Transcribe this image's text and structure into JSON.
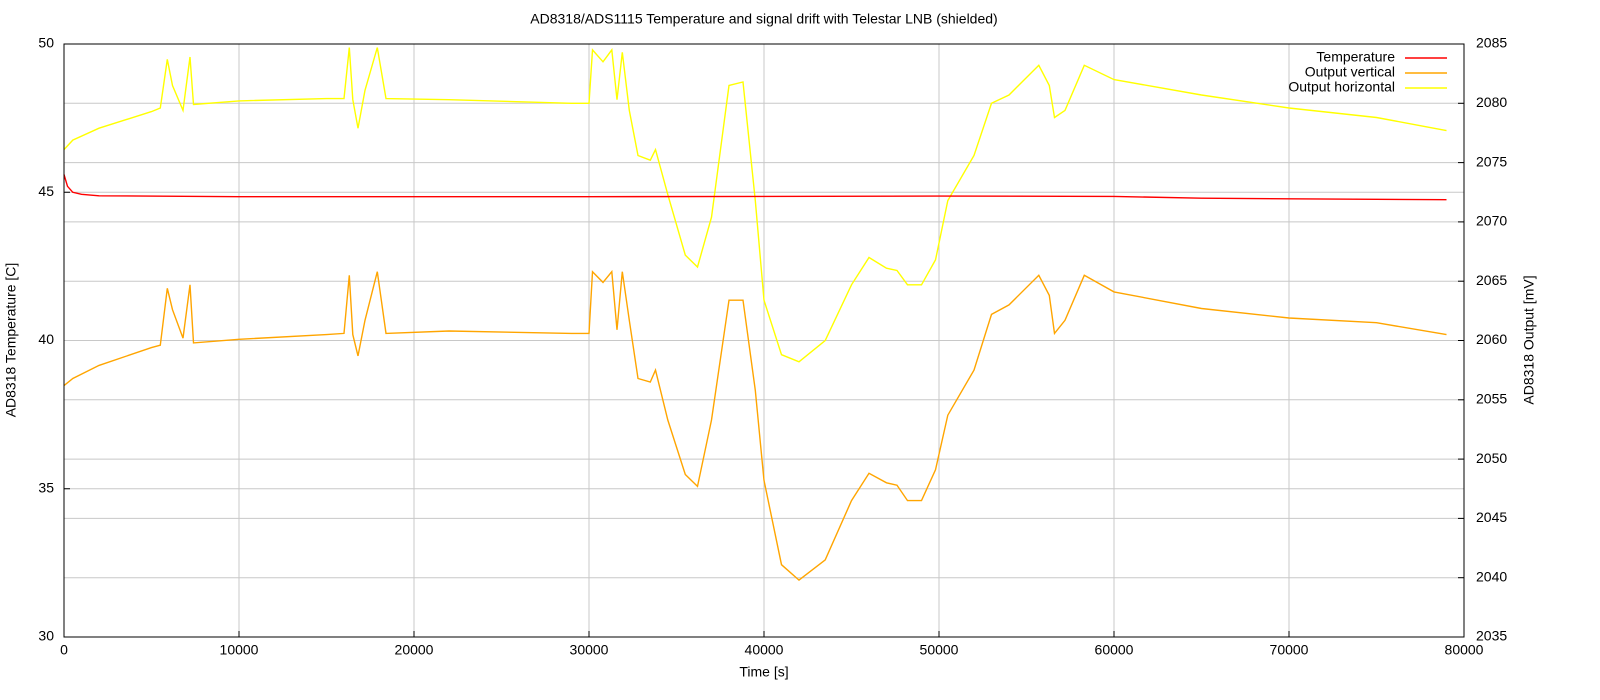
{
  "chart_data": {
    "type": "line",
    "title": "AD8318/ADS1115 Temperature and signal drift with Telestar LNB (shielded)",
    "x_label": "Time [s]",
    "y_label": "AD8318 Temperature [C]",
    "y2_label": "AD8318 Output [mV]",
    "xlim": [
      0,
      80000
    ],
    "xticks": [
      0,
      10000,
      20000,
      30000,
      40000,
      50000,
      60000,
      70000,
      80000
    ],
    "ylim": [
      30,
      50
    ],
    "yticks": [
      30,
      35,
      40,
      45,
      50
    ],
    "y2lim": [
      2035,
      2085
    ],
    "y2ticks": [
      2035,
      2040,
      2045,
      2050,
      2055,
      2060,
      2065,
      2070,
      2075,
      2080,
      2085
    ],
    "grid": true,
    "legend": "top-right",
    "series": [
      {
        "name": "Temperature",
        "color": "#ff0000",
        "x": [
          0,
          200,
          500,
          1000,
          2000,
          10000,
          30000,
          50000,
          60000,
          65000,
          70000,
          79000
        ],
        "values": [
          45.6,
          45.2,
          45.0,
          44.93,
          44.88,
          44.85,
          44.85,
          44.87,
          44.86,
          44.8,
          44.78,
          44.75
        ]
      },
      {
        "name": "Output vertical",
        "color": "#ffa500",
        "axis": "y2",
        "x": [
          0,
          500,
          2000,
          5000,
          5500,
          5900,
          6200,
          6800,
          7200,
          7400,
          10000,
          15000,
          16000,
          16300,
          16500,
          16800,
          17200,
          17900,
          18400,
          22000,
          29000,
          30000,
          30200,
          30800,
          31300,
          31600,
          31900,
          32300,
          32800,
          33500,
          33800,
          34500,
          35500,
          36200,
          37000,
          38000,
          38800,
          39500,
          40000,
          41000,
          42000,
          43500,
          45000,
          46000,
          47000,
          47600,
          48200,
          49000,
          49800,
          50500,
          52000,
          53000,
          54000,
          55700,
          56300,
          56600,
          57200,
          58300,
          60000,
          65000,
          70000,
          75000,
          79000
        ],
        "values": [
          2056.2,
          2056.8,
          2057.9,
          2059.4,
          2059.6,
          2064.4,
          2062.6,
          2060.2,
          2064.7,
          2059.8,
          2060.1,
          2060.5,
          2060.6,
          2065.5,
          2060.5,
          2058.7,
          2061.7,
          2065.8,
          2060.6,
          2060.8,
          2060.6,
          2060.6,
          2065.8,
          2064.9,
          2065.8,
          2060.9,
          2065.8,
          2061.7,
          2056.8,
          2056.5,
          2057.5,
          2053.3,
          2048.7,
          2047.7,
          2053.3,
          2063.4,
          2063.4,
          2055.8,
          2048.2,
          2041.1,
          2039.8,
          2041.5,
          2046.5,
          2048.8,
          2048.0,
          2047.8,
          2046.5,
          2046.5,
          2049.1,
          2053.7,
          2057.5,
          2062.2,
          2063.0,
          2065.5,
          2063.8,
          2060.6,
          2061.7,
          2065.5,
          2064.1,
          2062.7,
          2061.9,
          2061.5,
          2060.5
        ]
      },
      {
        "name": "Output horizontal",
        "color": "#ffff00",
        "axis": "y2",
        "x": [
          0,
          500,
          2000,
          5000,
          5500,
          5900,
          6200,
          6800,
          7200,
          7400,
          10000,
          15000,
          16000,
          16300,
          16500,
          16800,
          17200,
          17900,
          18400,
          22000,
          29000,
          30000,
          30200,
          30800,
          31300,
          31600,
          31900,
          32300,
          32800,
          33500,
          33800,
          34500,
          35500,
          36200,
          37000,
          38000,
          38800,
          39500,
          40000,
          41000,
          42000,
          43500,
          45000,
          46000,
          47000,
          47600,
          48200,
          49000,
          49800,
          50500,
          52000,
          53000,
          54000,
          55700,
          56300,
          56600,
          57200,
          58300,
          60000,
          65000,
          70000,
          75000,
          79000
        ],
        "values": [
          2076.1,
          2076.9,
          2077.9,
          2079.3,
          2079.6,
          2083.7,
          2081.5,
          2079.4,
          2083.9,
          2079.9,
          2080.2,
          2080.4,
          2080.4,
          2084.7,
          2080.3,
          2077.9,
          2081.1,
          2084.7,
          2080.4,
          2080.3,
          2080.0,
          2080.0,
          2084.5,
          2083.5,
          2084.5,
          2080.3,
          2084.3,
          2079.4,
          2075.6,
          2075.2,
          2076.1,
          2072.3,
          2067.2,
          2066.2,
          2070.4,
          2081.5,
          2081.8,
          2071.8,
          2063.4,
          2058.8,
          2058.2,
          2060.0,
          2064.7,
          2067.0,
          2066.1,
          2065.9,
          2064.7,
          2064.7,
          2066.8,
          2071.8,
          2075.6,
          2080.0,
          2080.7,
          2083.2,
          2081.5,
          2078.8,
          2079.4,
          2083.2,
          2082.0,
          2080.7,
          2079.6,
          2078.8,
          2077.7
        ]
      }
    ]
  }
}
